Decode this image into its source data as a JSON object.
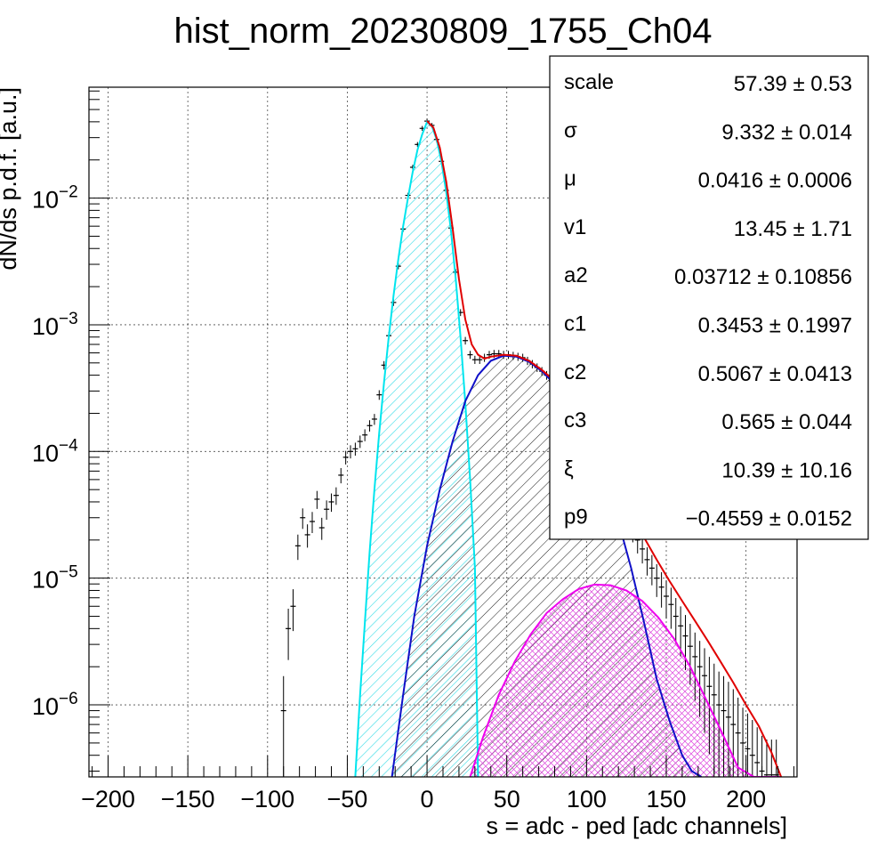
{
  "chart_data": {
    "type": "line",
    "title": "hist_norm_20230809_1755_Ch04",
    "xlabel": "s = adc - ped [adc channels]",
    "ylabel": "dN/ds p.d.f. [a.u.]",
    "xlim": [
      -212,
      232
    ],
    "ylim": [
      2.7e-07,
      0.075
    ],
    "yscale": "log",
    "grid": true,
    "x_ticks": [
      -200,
      -150,
      -100,
      -50,
      0,
      50,
      100,
      150,
      200
    ],
    "x_tick_labels": [
      "−200",
      "−150",
      "−100",
      "−50",
      "0",
      "50",
      "100",
      "150",
      "200"
    ],
    "y_ticks": [
      {
        "value": 1e-06,
        "base": "10",
        "exp": "−6"
      },
      {
        "value": 1e-05,
        "base": "10",
        "exp": "−5"
      },
      {
        "value": 0.0001,
        "base": "10",
        "exp": "−4"
      },
      {
        "value": 0.001,
        "base": "10",
        "exp": "−3"
      },
      {
        "value": 0.01,
        "base": "10",
        "exp": "−2"
      }
    ],
    "fit_params": [
      {
        "name": "scale",
        "value": "57.39 ± 0.53"
      },
      {
        "name": "σ",
        "value": "9.332 ± 0.014"
      },
      {
        "name": "μ",
        "value": "0.0416 ± 0.0006"
      },
      {
        "name": "v1",
        "value": "13.45 ± 1.71"
      },
      {
        "name": "a2",
        "value": "0.03712 ± 0.10856"
      },
      {
        "name": "c1",
        "value": "0.3453 ± 0.1997"
      },
      {
        "name": "c2",
        "value": "0.5067 ± 0.0413"
      },
      {
        "name": "c3",
        "value": "0.565 ± 0.044"
      },
      {
        "name": "ξ",
        "value": "10.39 ± 10.16"
      },
      {
        "name": "p9",
        "value": "−0.4559 ± 0.0152"
      }
    ],
    "series": [
      {
        "color": "#000000",
        "kind": "histogram",
        "x": [
          -90,
          -87,
          -84,
          -81,
          -78,
          -75,
          -72,
          -69,
          -66,
          -63,
          -60,
          -57,
          -54,
          -51,
          -48,
          -45,
          -42,
          -39,
          -36,
          -33,
          -30,
          -27,
          -24,
          -21,
          -18,
          -15,
          -12,
          -9,
          -6,
          -3,
          0,
          3,
          6,
          9,
          12,
          15,
          18,
          21,
          24,
          27,
          30,
          33,
          36,
          39,
          42,
          45,
          48,
          51,
          54,
          57,
          60,
          63,
          66,
          69,
          72,
          75,
          78,
          81,
          84,
          87,
          90,
          93,
          96,
          99,
          102,
          105,
          108,
          111,
          114,
          117,
          120,
          123,
          126,
          129,
          132,
          135,
          138,
          141,
          144,
          147,
          150,
          153,
          156,
          159,
          162,
          165,
          168,
          171,
          174,
          177,
          180,
          183,
          186,
          189,
          192,
          195,
          198,
          201,
          204,
          207,
          210,
          213,
          216,
          219
        ],
        "y": [
          9e-07,
          4e-06,
          6e-06,
          1.8e-05,
          3e-05,
          2.2e-05,
          2.8e-05,
          4.2e-05,
          2.5e-05,
          3.5e-05,
          4e-05,
          4.5e-05,
          6.5e-05,
          9e-05,
          0.0001,
          0.000105,
          0.00012,
          0.000135,
          0.00016,
          0.00018,
          0.00028,
          0.00048,
          0.00082,
          0.0015,
          0.0029,
          0.0057,
          0.0105,
          0.0175,
          0.0265,
          0.0355,
          0.0405,
          0.0375,
          0.029,
          0.0195,
          0.0115,
          0.0058,
          0.0026,
          0.00125,
          0.00075,
          0.00058,
          0.00053,
          0.00053,
          0.00055,
          0.00058,
          0.00059,
          0.00059,
          0.00058,
          0.00058,
          0.00057,
          0.00056,
          0.00055,
          0.00052,
          0.00049,
          0.00046,
          0.00043,
          0.0004,
          0.00036,
          0.00032,
          0.00028,
          0.00025,
          0.00022,
          0.000185,
          0.00016,
          0.000135,
          0.000115,
          9.8e-05,
          8.2e-05,
          7e-05,
          5.8e-05,
          4.8e-05,
          4e-05,
          3.4e-05,
          2.8e-05,
          2.4e-05,
          2e-05,
          1.7e-05,
          1.4e-05,
          1.2e-05,
          1e-05,
          8.5e-06,
          7.2e-06,
          6.2e-06,
          5e-06,
          4.2e-06,
          3.5e-06,
          2.9e-06,
          2.4e-06,
          2e-06,
          1.7e-06,
          1.4e-06,
          1.2e-06,
          1e-06,
          9e-07,
          8e-07,
          7e-07,
          6e-07,
          5e-07,
          4.5e-07,
          4e-07,
          3.5e-07,
          3e-07,
          2.8e-07,
          2.8e-07,
          2.8e-07
        ]
      },
      {
        "color": "#00e5ee",
        "kind": "gaussian",
        "x": [
          -45,
          -42,
          -39,
          -36,
          -33,
          -30,
          -27,
          -24,
          -21,
          -18,
          -15,
          -12,
          -9,
          -6,
          -3,
          0,
          3,
          6,
          9,
          12,
          15,
          18,
          21,
          24,
          27,
          30,
          32
        ],
        "y": [
          2.7e-07,
          1.2e-06,
          4.5e-06,
          1.6e-05,
          5e-05,
          0.00014,
          0.00035,
          0.0008,
          0.0017,
          0.0033,
          0.006,
          0.01,
          0.016,
          0.024,
          0.032,
          0.04,
          0.037,
          0.029,
          0.0195,
          0.0112,
          0.0055,
          0.0023,
          0.0008,
          0.00024,
          6e-05,
          1.2e-05,
          2.7e-07
        ]
      },
      {
        "color": "#1010c8",
        "kind": "single-pe",
        "x": [
          -22,
          -15,
          -8,
          0,
          8,
          16,
          24,
          32,
          40,
          48,
          56,
          64,
          72,
          80,
          88,
          96,
          104,
          112,
          120,
          128,
          136,
          144,
          152,
          160,
          166,
          172
        ],
        "y": [
          2.7e-07,
          1.2e-06,
          5e-06,
          1.8e-05,
          5e-05,
          0.00012,
          0.00025,
          0.0004,
          0.00052,
          0.00057,
          0.00056,
          0.00051,
          0.00043,
          0.00034,
          0.00025,
          0.00017,
          0.000105,
          5.8e-05,
          2.8e-05,
          1.2e-05,
          4.5e-06,
          1.6e-06,
          7.5e-07,
          4e-07,
          3e-07,
          2.7e-07
        ]
      },
      {
        "color": "#ee00ee",
        "kind": "double-pe",
        "x": [
          27,
          35,
          45,
          55,
          65,
          75,
          85,
          95,
          105,
          115,
          125,
          135,
          145,
          155,
          165,
          175,
          185,
          195,
          205,
          215,
          222
        ],
        "y": [
          2.7e-07,
          5.5e-07,
          1.2e-06,
          2.2e-06,
          3.6e-06,
          5.3e-06,
          6.8e-06,
          8.2e-06,
          8.9e-06,
          8.8e-06,
          8e-06,
          6.6e-06,
          4.9e-06,
          3.3e-06,
          2e-06,
          1.1e-06,
          6e-07,
          3.2e-07,
          2.7e-07,
          2.7e-07,
          2.7e-07
        ]
      },
      {
        "color": "#e00000",
        "kind": "total-fit",
        "x": [
          0,
          4,
          8,
          12,
          16,
          20,
          24,
          28,
          32,
          36,
          40,
          48,
          56,
          64,
          72,
          80,
          88,
          96,
          104,
          112,
          120,
          128,
          136,
          144,
          152,
          160,
          168,
          176,
          184,
          192,
          200,
          208,
          216,
          222
        ],
        "y": [
          0.0405,
          0.036,
          0.025,
          0.0135,
          0.0058,
          0.0023,
          0.0011,
          0.0007,
          0.00058,
          0.00054,
          0.00056,
          0.00058,
          0.00057,
          0.00052,
          0.00044,
          0.00036,
          0.00027,
          0.00019,
          0.000125,
          8.2e-05,
          5.2e-05,
          3.3e-05,
          2.1e-05,
          1.4e-05,
          9.5e-06,
          6.6e-06,
          4.6e-06,
          3.2e-06,
          2.2e-06,
          1.5e-06,
          1e-06,
          6.8e-07,
          4.2e-07,
          2.7e-07
        ]
      }
    ]
  }
}
